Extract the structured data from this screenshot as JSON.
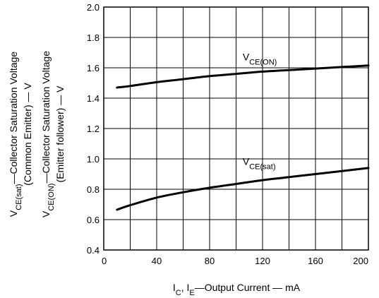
{
  "chart_data": {
    "type": "line",
    "title": "",
    "xlabel": {
      "parts": [
        {
          "text": "I",
          "sub": "C"
        },
        {
          "text": ", I",
          "sub": "E"
        },
        {
          "text": "—Output Current — mA",
          "sub": ""
        }
      ]
    },
    "ylabel_lines": [
      {
        "parts": [
          {
            "text": "V",
            "sub": "CE(sat)"
          },
          {
            "text": "—Collector Saturation Voltage",
            "sub": ""
          }
        ]
      },
      {
        "parts": [
          {
            "text": "(Common Emitter) — V",
            "sub": ""
          }
        ]
      },
      {
        "parts": [
          {
            "text": "V",
            "sub": "CE(ON)"
          },
          {
            "text": "—Collector Saturation Voltage",
            "sub": ""
          }
        ]
      },
      {
        "parts": [
          {
            "text": "(Emitter follower) — V",
            "sub": ""
          }
        ]
      }
    ],
    "xlim": [
      0,
      200
    ],
    "ylim": [
      0.4,
      2.0
    ],
    "x_ticks": [
      0,
      40,
      80,
      120,
      160,
      200
    ],
    "y_ticks": [
      0.4,
      0.6,
      0.8,
      1.0,
      1.2,
      1.4,
      1.6,
      1.8,
      2.0
    ],
    "x_tick_labels": [
      "0",
      "40",
      "80",
      "120",
      "160",
      "200"
    ],
    "y_tick_labels": [
      "0.4",
      "0.6",
      "0.8",
      "1.0",
      "1.2",
      "1.4",
      "1.6",
      "1.8",
      "2.0"
    ],
    "x_grid_step": 20,
    "y_grid_step": 0.2,
    "grid": true,
    "series": [
      {
        "label": {
          "text": "V",
          "sub": "CE(ON)"
        },
        "label_at": {
          "x": 105,
          "y": 1.65
        },
        "x": [
          10,
          20,
          40,
          60,
          80,
          100,
          120,
          140,
          160,
          180,
          200
        ],
        "y": [
          1.47,
          1.48,
          1.505,
          1.525,
          1.545,
          1.56,
          1.575,
          1.585,
          1.595,
          1.605,
          1.615
        ]
      },
      {
        "label": {
          "text": "V",
          "sub": "CE(sat)"
        },
        "label_at": {
          "x": 105,
          "y": 0.96
        },
        "x": [
          10,
          20,
          40,
          60,
          80,
          100,
          120,
          140,
          160,
          180,
          200
        ],
        "y": [
          0.665,
          0.695,
          0.745,
          0.78,
          0.81,
          0.835,
          0.86,
          0.88,
          0.9,
          0.92,
          0.94
        ]
      }
    ]
  }
}
